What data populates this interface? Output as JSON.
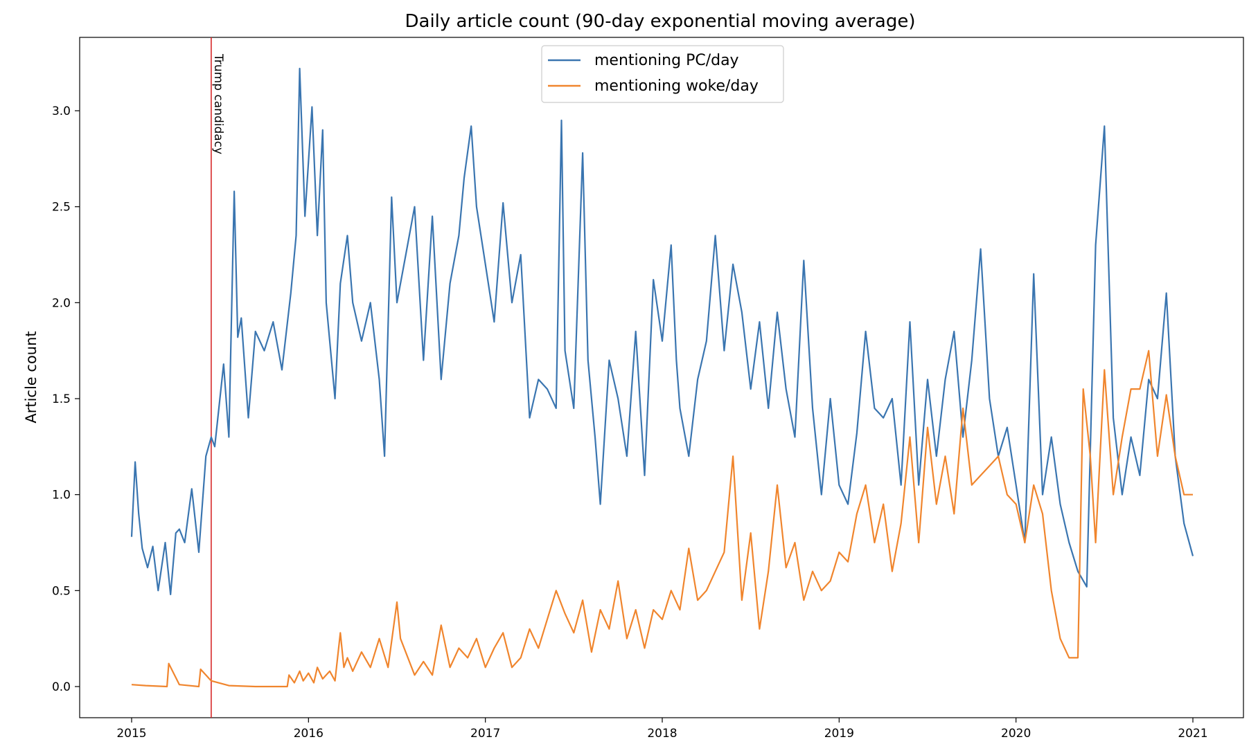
{
  "chart_data": {
    "type": "line",
    "title": "Daily article count (90-day exponential moving average)",
    "xlabel": "",
    "ylabel": "Article count",
    "xlim": [
      2015.0,
      2021.0
    ],
    "ylim": [
      -0.15,
      3.4
    ],
    "x_ticks": [
      2015,
      2016,
      2017,
      2018,
      2019,
      2020,
      2021
    ],
    "x_tick_labels": [
      "2015",
      "2016",
      "2017",
      "2018",
      "2019",
      "2020",
      "2021"
    ],
    "y_ticks": [
      0.0,
      0.5,
      1.0,
      1.5,
      2.0,
      2.5,
      3.0
    ],
    "y_tick_labels": [
      "0.0",
      "0.5",
      "1.0",
      "1.5",
      "2.0",
      "2.5",
      "3.0"
    ],
    "grid": false,
    "legend_position": "top-center",
    "vline": {
      "x": 2015.45,
      "label": "Trump candidacy",
      "color": "#d62728"
    },
    "series": [
      {
        "name": "mentioning PC/day",
        "color": "#3a75b0",
        "x": [
          2015.0,
          2015.02,
          2015.04,
          2015.06,
          2015.09,
          2015.12,
          2015.15,
          2015.19,
          2015.22,
          2015.25,
          2015.27,
          2015.3,
          2015.34,
          2015.38,
          2015.42,
          2015.45,
          2015.47,
          2015.52,
          2015.55,
          2015.58,
          2015.6,
          2015.62,
          2015.66,
          2015.7,
          2015.75,
          2015.8,
          2015.85,
          2015.9,
          2015.93,
          2015.95,
          2015.98,
          2016.02,
          2016.05,
          2016.08,
          2016.1,
          2016.15,
          2016.18,
          2016.22,
          2016.25,
          2016.3,
          2016.35,
          2016.4,
          2016.43,
          2016.47,
          2016.5,
          2016.55,
          2016.6,
          2016.65,
          2016.7,
          2016.75,
          2016.8,
          2016.85,
          2016.88,
          2016.92,
          2016.95,
          2017.0,
          2017.05,
          2017.1,
          2017.15,
          2017.2,
          2017.25,
          2017.3,
          2017.35,
          2017.4,
          2017.43,
          2017.45,
          2017.5,
          2017.55,
          2017.58,
          2017.62,
          2017.65,
          2017.7,
          2017.75,
          2017.8,
          2017.85,
          2017.9,
          2017.95,
          2018.0,
          2018.05,
          2018.08,
          2018.1,
          2018.15,
          2018.2,
          2018.25,
          2018.3,
          2018.35,
          2018.4,
          2018.45,
          2018.5,
          2018.55,
          2018.6,
          2018.65,
          2018.7,
          2018.75,
          2018.8,
          2018.85,
          2018.9,
          2018.95,
          2019.0,
          2019.05,
          2019.1,
          2019.15,
          2019.2,
          2019.25,
          2019.3,
          2019.35,
          2019.4,
          2019.45,
          2019.5,
          2019.55,
          2019.6,
          2019.65,
          2019.7,
          2019.75,
          2019.8,
          2019.85,
          2019.9,
          2019.95,
          2020.0,
          2020.05,
          2020.1,
          2020.15,
          2020.2,
          2020.25,
          2020.3,
          2020.35,
          2020.4,
          2020.45,
          2020.5,
          2020.55,
          2020.6,
          2020.65,
          2020.7,
          2020.75,
          2020.8,
          2020.85,
          2020.9,
          2020.95,
          2021.0
        ],
        "y": [
          0.78,
          1.17,
          0.9,
          0.72,
          0.62,
          0.73,
          0.5,
          0.75,
          0.48,
          0.8,
          0.82,
          0.75,
          1.03,
          0.7,
          1.2,
          1.3,
          1.25,
          1.68,
          1.3,
          2.58,
          1.82,
          1.92,
          1.4,
          1.85,
          1.75,
          1.9,
          1.65,
          2.05,
          2.35,
          3.22,
          2.45,
          3.02,
          2.35,
          2.9,
          2.0,
          1.5,
          2.1,
          2.35,
          2.0,
          1.8,
          2.0,
          1.6,
          1.2,
          2.55,
          2.0,
          2.25,
          2.5,
          1.7,
          2.45,
          1.6,
          2.1,
          2.35,
          2.65,
          2.92,
          2.5,
          2.2,
          1.9,
          2.52,
          2.0,
          2.25,
          1.4,
          1.6,
          1.55,
          1.45,
          2.95,
          1.75,
          1.45,
          2.78,
          1.7,
          1.3,
          0.95,
          1.7,
          1.5,
          1.2,
          1.85,
          1.1,
          2.12,
          1.8,
          2.3,
          1.7,
          1.45,
          1.2,
          1.6,
          1.8,
          2.35,
          1.75,
          2.2,
          1.95,
          1.55,
          1.9,
          1.45,
          1.95,
          1.55,
          1.3,
          2.22,
          1.45,
          1.0,
          1.5,
          1.05,
          0.95,
          1.32,
          1.85,
          1.45,
          1.4,
          1.5,
          1.05,
          1.9,
          1.05,
          1.6,
          1.2,
          1.6,
          1.85,
          1.3,
          1.7,
          2.28,
          1.5,
          1.2,
          1.35,
          1.05,
          0.75,
          2.15,
          1.0,
          1.3,
          0.95,
          0.75,
          0.6,
          0.52,
          2.3,
          2.92,
          1.4,
          1.0,
          1.3,
          1.1,
          1.6,
          1.5,
          2.05,
          1.2,
          0.85,
          0.68
        ]
      },
      {
        "name": "mentioning woke/day",
        "color": "#f0852d",
        "x": [
          2015.0,
          2015.08,
          2015.2,
          2015.21,
          2015.27,
          2015.38,
          2015.39,
          2015.45,
          2015.55,
          2015.7,
          2015.88,
          2015.89,
          2015.92,
          2015.95,
          2015.97,
          2016.0,
          2016.03,
          2016.05,
          2016.08,
          2016.12,
          2016.15,
          2016.18,
          2016.2,
          2016.22,
          2016.25,
          2016.3,
          2016.35,
          2016.4,
          2016.45,
          2016.5,
          2016.52,
          2016.6,
          2016.65,
          2016.7,
          2016.75,
          2016.8,
          2016.85,
          2016.9,
          2016.95,
          2017.0,
          2017.05,
          2017.1,
          2017.15,
          2017.2,
          2017.25,
          2017.3,
          2017.35,
          2017.4,
          2017.45,
          2017.5,
          2017.55,
          2017.6,
          2017.65,
          2017.7,
          2017.75,
          2017.8,
          2017.85,
          2017.9,
          2017.95,
          2018.0,
          2018.05,
          2018.1,
          2018.15,
          2018.2,
          2018.25,
          2018.3,
          2018.35,
          2018.4,
          2018.45,
          2018.5,
          2018.55,
          2018.6,
          2018.65,
          2018.7,
          2018.75,
          2018.8,
          2018.85,
          2018.9,
          2018.95,
          2019.0,
          2019.05,
          2019.1,
          2019.15,
          2019.2,
          2019.25,
          2019.3,
          2019.35,
          2019.4,
          2019.45,
          2019.5,
          2019.55,
          2019.6,
          2019.65,
          2019.7,
          2019.75,
          2019.8,
          2019.85,
          2019.9,
          2019.95,
          2020.0,
          2020.05,
          2020.1,
          2020.15,
          2020.2,
          2020.25,
          2020.3,
          2020.35,
          2020.38,
          2020.42,
          2020.45,
          2020.5,
          2020.55,
          2020.6,
          2020.65,
          2020.7,
          2020.75,
          2020.8,
          2020.85,
          2020.9,
          2020.95,
          2021.0
        ],
        "y": [
          0.01,
          0.005,
          0.0,
          0.12,
          0.01,
          0.0,
          0.09,
          0.03,
          0.005,
          0.0,
          0.0,
          0.06,
          0.02,
          0.08,
          0.03,
          0.07,
          0.02,
          0.1,
          0.04,
          0.08,
          0.03,
          0.28,
          0.1,
          0.15,
          0.08,
          0.18,
          0.1,
          0.25,
          0.1,
          0.44,
          0.25,
          0.06,
          0.13,
          0.06,
          0.32,
          0.1,
          0.2,
          0.15,
          0.25,
          0.1,
          0.2,
          0.28,
          0.1,
          0.15,
          0.3,
          0.2,
          0.35,
          0.5,
          0.38,
          0.28,
          0.45,
          0.18,
          0.4,
          0.3,
          0.55,
          0.25,
          0.4,
          0.2,
          0.4,
          0.35,
          0.5,
          0.4,
          0.72,
          0.45,
          0.5,
          0.6,
          0.7,
          1.2,
          0.45,
          0.8,
          0.3,
          0.6,
          1.05,
          0.62,
          0.75,
          0.45,
          0.6,
          0.5,
          0.55,
          0.7,
          0.65,
          0.9,
          1.05,
          0.75,
          0.95,
          0.6,
          0.85,
          1.3,
          0.75,
          1.35,
          0.95,
          1.2,
          0.9,
          1.45,
          1.05,
          1.1,
          1.15,
          1.2,
          1.0,
          0.95,
          0.75,
          1.05,
          0.9,
          0.5,
          0.25,
          0.15,
          0.15,
          1.55,
          1.2,
          0.75,
          1.65,
          1.0,
          1.3,
          1.55,
          1.55,
          1.75,
          1.2,
          1.52,
          1.2,
          1.0,
          1.0
        ]
      }
    ]
  }
}
